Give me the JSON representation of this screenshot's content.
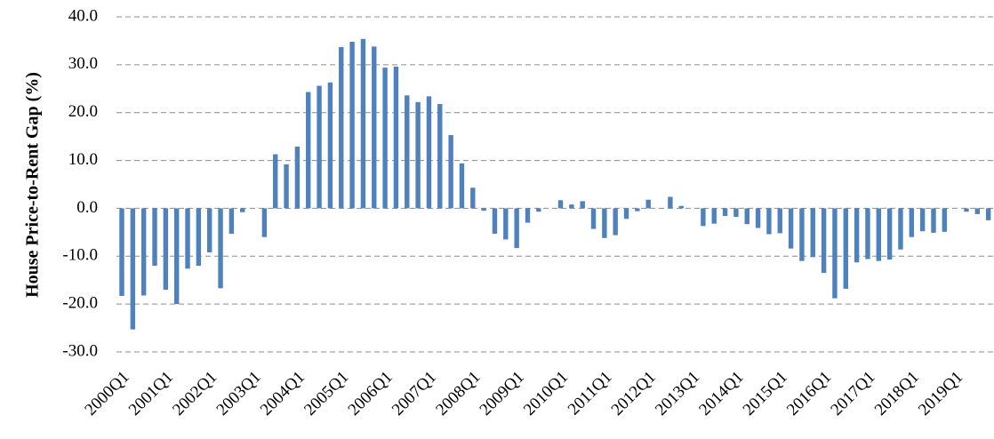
{
  "chart_data": {
    "type": "bar",
    "y_label": "House Price-to-Rent Gap (%)",
    "categories": [
      "2000Q1",
      null,
      null,
      null,
      "2001Q1",
      null,
      null,
      null,
      "2002Q1",
      null,
      null,
      null,
      "2003Q1",
      null,
      null,
      null,
      "2004Q1",
      null,
      null,
      null,
      "2005Q1",
      null,
      null,
      null,
      "2006Q1",
      null,
      null,
      null,
      "2007Q1",
      null,
      null,
      null,
      "2008Q1",
      null,
      null,
      null,
      "2009Q1",
      null,
      null,
      null,
      "2010Q1",
      null,
      null,
      null,
      "2011Q1",
      null,
      null,
      null,
      "2012Q1",
      null,
      null,
      null,
      "2013Q1",
      null,
      null,
      null,
      "2014Q1",
      null,
      null,
      null,
      "2015Q1",
      null,
      null,
      null,
      "2016Q1",
      null,
      null,
      null,
      "2017Q1",
      null,
      null,
      null,
      "2018Q1",
      null,
      null,
      null,
      "2019Q1",
      null,
      null,
      null
    ],
    "values": [
      -18.3,
      -25.3,
      -18.2,
      -12,
      -17,
      -20,
      -12.6,
      -12,
      -9.2,
      -16.7,
      -5.3,
      -0.8,
      0,
      -6,
      11.3,
      9.2,
      12.9,
      24.3,
      25.6,
      26.3,
      33.7,
      34.8,
      35.4,
      33.8,
      29.4,
      29.6,
      23.6,
      22.2,
      23.4,
      21.8,
      15.3,
      9.4,
      4.3,
      -0.5,
      -5.3,
      -6.5,
      -8.3,
      -3,
      -0.7,
      0,
      1.7,
      0.8,
      1.5,
      -4.3,
      -6.2,
      -5.6,
      -2.2,
      -0.6,
      1.8,
      0,
      2.4,
      0.5,
      0,
      -3.7,
      -3.2,
      -1.6,
      -1.8,
      -3.3,
      -4.1,
      -5.4,
      -5.2,
      -8.4,
      -11,
      -10.2,
      -13.5,
      -18.8,
      -16.8,
      -11.3,
      -10.6,
      -11,
      -10.7,
      -8.6,
      -6,
      -4.8,
      -5.1,
      -4.9,
      0,
      -0.7,
      -1.2,
      -2.5
    ],
    "color": "#4f81bd",
    "ylim": [
      -30,
      40
    ],
    "yticks": [
      {
        "value": -30,
        "label": "-30.0"
      },
      {
        "value": -20,
        "label": "-20.0"
      },
      {
        "value": -10,
        "label": "-10.0"
      },
      {
        "value": 0,
        "label": "0.0"
      },
      {
        "value": 10,
        "label": "10.0"
      },
      {
        "value": 20,
        "label": "20.0"
      },
      {
        "value": 30,
        "label": "30.0"
      },
      {
        "value": 40,
        "label": "40.0"
      }
    ],
    "grid": true
  }
}
